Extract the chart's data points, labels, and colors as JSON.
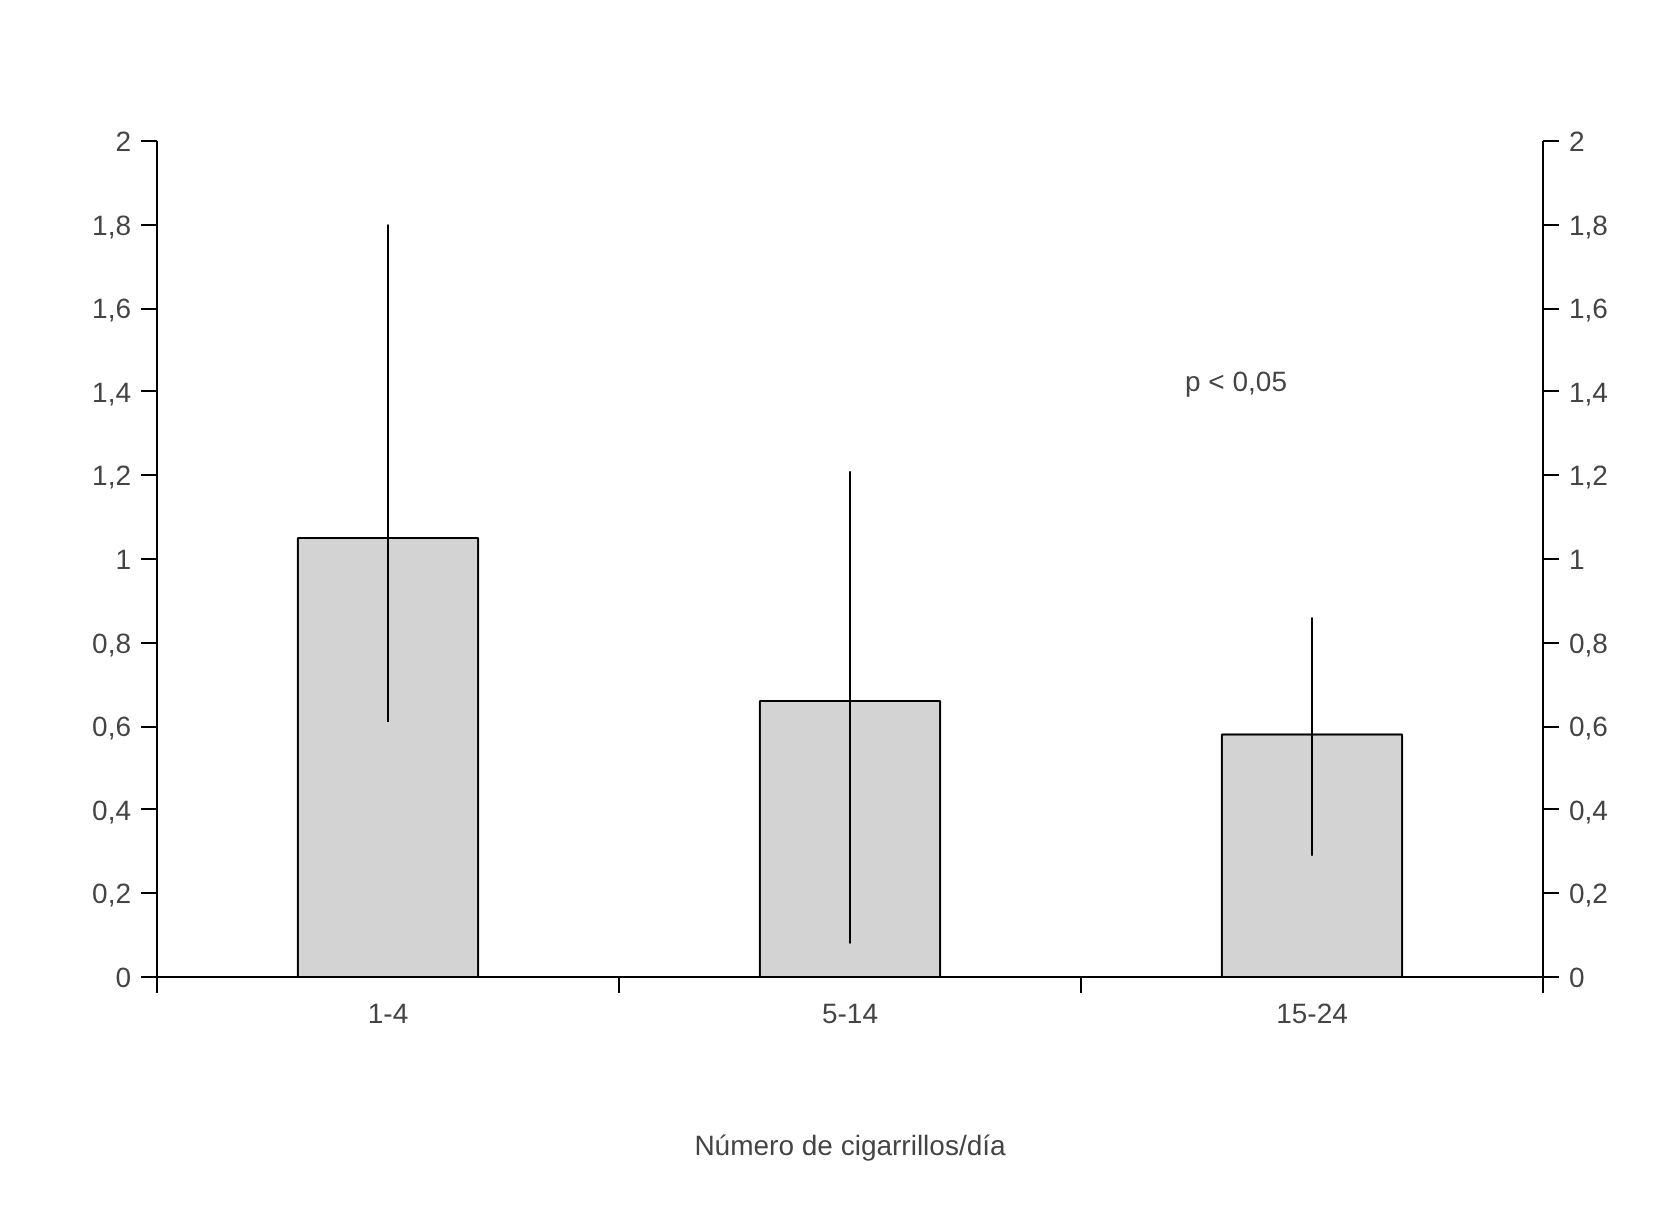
{
  "chart_data": {
    "type": "bar",
    "xlabel": "Número de cigarrillos/día",
    "categories": [
      "1-4",
      "5-14",
      "15-24"
    ],
    "values": [
      1.05,
      0.66,
      0.58
    ],
    "color": "#d3d3d3",
    "errors": [
      [
        0.61,
        1.8
      ],
      [
        0.08,
        1.21
      ],
      [
        0.29,
        0.86
      ]
    ],
    "annotations": [
      "p < 0,05"
    ],
    "ylim": [
      0,
      2
    ],
    "yticks": [
      0,
      {
        "value": 0.2,
        "label": "0,2"
      },
      {
        "value": 0.4,
        "label": "0,4"
      },
      {
        "value": 0.6,
        "label": "0,6"
      },
      {
        "value": 0.8,
        "label": "0,8"
      },
      1,
      {
        "value": 1.2,
        "label": "1,2"
      },
      {
        "value": 1.4,
        "label": "1,4"
      },
      {
        "value": 1.6,
        "label": "1,6"
      },
      {
        "value": 1.8,
        "label": "1,8"
      },
      2
    ],
    "y2lim": [
      0,
      2
    ],
    "y2ticks": [
      0,
      {
        "value": 0.2,
        "label": "0,2"
      },
      {
        "value": 0.4,
        "label": "0,4"
      },
      {
        "value": 0.6,
        "label": "0,6"
      },
      {
        "value": 0.8,
        "label": "0,8"
      },
      1,
      {
        "value": 1.2,
        "label": "1,2"
      },
      {
        "value": 1.4,
        "label": "1,4"
      },
      {
        "value": 1.6,
        "label": "1,6"
      },
      {
        "value": 1.8,
        "label": "1,8"
      },
      2
    ]
  }
}
